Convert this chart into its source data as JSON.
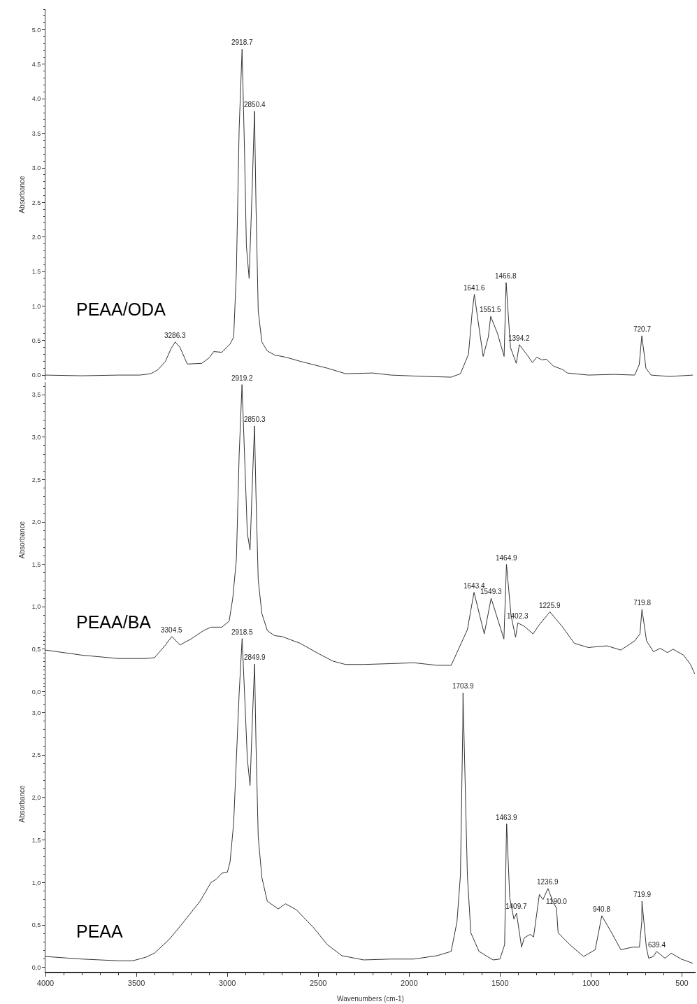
{
  "chart_data": [
    {
      "type": "line",
      "ylabel": "Absorbance",
      "xlim": [
        4000,
        425
      ],
      "ylim": [
        -0.07,
        5.3
      ],
      "tick_labels": "y",
      "yticks": [
        {
          "value": 0,
          "label": "0.0"
        },
        {
          "value": 0.5,
          "label": "0.5"
        },
        {
          "value": 1,
          "label": "1.0"
        },
        {
          "value": 1.5,
          "label": "1.5"
        },
        {
          "value": 2,
          "label": "2.0"
        },
        {
          "value": 2.5,
          "label": "2.5"
        },
        {
          "value": 3,
          "label": "3.0"
        },
        {
          "value": 3.5,
          "label": "3.5"
        },
        {
          "value": 4,
          "label": "4.0"
        },
        {
          "value": 4.5,
          "label": "4.5"
        },
        {
          "value": 5,
          "label": "5.0"
        }
      ],
      "series": [
        {
          "name": "PEAA/ODA",
          "color": "#333333",
          "x": [
            4000,
            3800,
            3600,
            3480,
            3420,
            3380,
            3340,
            3310,
            3286.3,
            3260,
            3220,
            3140,
            3100,
            3075,
            3030,
            2985,
            2965,
            2950,
            2935,
            2918.7,
            2905,
            2895,
            2880,
            2862,
            2850.4,
            2842,
            2830,
            2810,
            2780,
            2740,
            2680,
            2600,
            2450,
            2350,
            2200,
            2100,
            1910,
            1769,
            1718,
            1674,
            1654,
            1641.6,
            1622,
            1593,
            1565,
            1551.5,
            1514,
            1478,
            1466.8,
            1443,
            1411,
            1394.2,
            1348,
            1322,
            1299,
            1271,
            1245,
            1207,
            1156,
            1130,
            1015,
            875,
            760,
            735,
            720.7,
            698,
            670,
            568,
            504,
            440
          ],
          "values": [
            0.0,
            -0.01,
            0.0,
            0.0,
            0.02,
            0.08,
            0.2,
            0.38,
            0.48,
            0.4,
            0.16,
            0.17,
            0.25,
            0.34,
            0.33,
            0.45,
            0.55,
            1.5,
            3.56,
            4.72,
            3.2,
            1.87,
            1.4,
            2.8,
            3.82,
            2.43,
            0.93,
            0.48,
            0.35,
            0.29,
            0.26,
            0.2,
            0.1,
            0.02,
            0.03,
            0.0,
            -0.02,
            -0.03,
            0.02,
            0.3,
            0.9,
            1.17,
            0.8,
            0.27,
            0.55,
            0.85,
            0.6,
            0.27,
            1.34,
            0.4,
            0.17,
            0.44,
            0.28,
            0.18,
            0.26,
            0.22,
            0.23,
            0.13,
            0.08,
            0.03,
            0.0,
            0.01,
            0.0,
            0.15,
            0.57,
            0.1,
            0.0,
            -0.02,
            -0.01,
            0.0
          ]
        }
      ],
      "annotations": [
        {
          "text": "2918.7",
          "x": 2918.7,
          "y": 4.72
        },
        {
          "text": "2850.4",
          "x": 2850.4,
          "y": 3.82
        },
        {
          "text": "3286.3",
          "x": 3286.3,
          "y": 0.48
        },
        {
          "text": "1641.6",
          "x": 1641.6,
          "y": 1.17
        },
        {
          "text": "1551.5",
          "x": 1551.5,
          "y": 0.85
        },
        {
          "text": "1466.8",
          "x": 1466.8,
          "y": 1.34
        },
        {
          "text": "1394.2",
          "x": 1394.2,
          "y": 0.44
        },
        {
          "text": "720.7",
          "x": 720.7,
          "y": 0.57
        }
      ]
    },
    {
      "type": "line",
      "ylabel": "Absorbance",
      "xlim": [
        4000,
        425
      ],
      "ylim": [
        -0.07,
        3.65
      ],
      "tick_labels": "y",
      "yticks": [
        {
          "value": 0,
          "label": "0,0"
        },
        {
          "value": 0.5,
          "label": "0,5"
        },
        {
          "value": 1,
          "label": "1,0"
        },
        {
          "value": 1.5,
          "label": "1,5"
        },
        {
          "value": 2,
          "label": "2,0"
        },
        {
          "value": 2.5,
          "label": "2,5"
        },
        {
          "value": 3,
          "label": "3,0"
        },
        {
          "value": 3.5,
          "label": "3,5"
        }
      ],
      "series": [
        {
          "name": "PEAA/BA",
          "color": "#333333",
          "x": [
            4000,
            3800,
            3600,
            3450,
            3400,
            3340,
            3304.5,
            3260,
            3200,
            3130,
            3090,
            3030,
            2990,
            2970,
            2950,
            2935,
            2919.2,
            2905,
            2890,
            2875,
            2862,
            2850.3,
            2842,
            2830,
            2810,
            2780,
            2740,
            2700,
            2600,
            2500,
            2420,
            2350,
            2250,
            2102,
            1974,
            1846,
            1769,
            1731,
            1680,
            1643.4,
            1587,
            1549.3,
            1479,
            1464.9,
            1440,
            1415,
            1402.3,
            1367,
            1319,
            1284,
            1225.9,
            1156,
            1092,
            1015,
            913,
            836,
            759,
            731,
            719.8,
            695,
            657,
            619,
            580,
            549,
            491,
            453,
            430
          ],
          "values": [
            0.49,
            0.43,
            0.39,
            0.39,
            0.4,
            0.55,
            0.65,
            0.55,
            0.62,
            0.72,
            0.76,
            0.76,
            0.83,
            1.1,
            1.56,
            2.78,
            3.62,
            2.78,
            1.87,
            1.67,
            2.48,
            3.13,
            2.29,
            1.32,
            0.92,
            0.72,
            0.66,
            0.65,
            0.57,
            0.45,
            0.36,
            0.32,
            0.32,
            0.33,
            0.34,
            0.31,
            0.31,
            0.49,
            0.73,
            1.17,
            0.68,
            1.1,
            0.62,
            1.5,
            0.9,
            0.64,
            0.81,
            0.77,
            0.68,
            0.79,
            0.94,
            0.76,
            0.57,
            0.52,
            0.54,
            0.49,
            0.6,
            0.68,
            0.97,
            0.6,
            0.47,
            0.51,
            0.46,
            0.5,
            0.43,
            0.32,
            0.21
          ]
        }
      ],
      "annotations": [
        {
          "text": "2919.2",
          "x": 2919.2,
          "y": 3.62
        },
        {
          "text": "2850.3",
          "x": 2850.3,
          "y": 3.13
        },
        {
          "text": "3304.5",
          "x": 3304.5,
          "y": 0.65
        },
        {
          "text": "1643.4",
          "x": 1643.4,
          "y": 1.17
        },
        {
          "text": "1549.3",
          "x": 1549.3,
          "y": 1.1
        },
        {
          "text": "1464.9",
          "x": 1464.9,
          "y": 1.5
        },
        {
          "text": "1402.3",
          "x": 1402.3,
          "y": 0.81
        },
        {
          "text": "1225.9",
          "x": 1225.9,
          "y": 0.94
        },
        {
          "text": "719.8",
          "x": 719.8,
          "y": 0.97
        }
      ]
    },
    {
      "type": "line",
      "ylabel": "Absorbance",
      "xlabel": "Wavenumbers (cm-1)",
      "xlim": [
        4000,
        425
      ],
      "ylim": [
        -0.05,
        3.9
      ],
      "xticks": [
        4000,
        3500,
        3000,
        2500,
        2000,
        1500,
        1000,
        500
      ],
      "yticks": [
        {
          "value": 0,
          "label": "0,0"
        },
        {
          "value": 0.5,
          "label": "0,5"
        },
        {
          "value": 1,
          "label": "1,0"
        },
        {
          "value": 1.5,
          "label": "1,5"
        },
        {
          "value": 2,
          "label": "2,0"
        },
        {
          "value": 2.5,
          "label": "2,5"
        },
        {
          "value": 3,
          "label": "3,0"
        }
      ],
      "series": [
        {
          "name": "PEAA",
          "color": "#333333",
          "x": [
            4000,
            3800,
            3600,
            3520,
            3450,
            3400,
            3320,
            3250,
            3150,
            3090,
            3060,
            3030,
            3000,
            2985,
            2965,
            2950,
            2935,
            2918.5,
            2905,
            2890,
            2875,
            2862,
            2849.9,
            2842,
            2830,
            2810,
            2780,
            2720,
            2680,
            2620,
            2580,
            2530,
            2450,
            2370,
            2250,
            2102,
            1974,
            1846,
            1769,
            1737,
            1718,
            1705,
            1703.9,
            1680,
            1661,
            1616,
            1539,
            1501,
            1475,
            1466,
            1463.9,
            1447,
            1424,
            1409.7,
            1382,
            1367,
            1335,
            1316,
            1284,
            1264,
            1236.9,
            1207,
            1190.0,
            1181,
            1117,
            1041,
            977,
            940.8,
            887,
            836,
            772,
            734,
            721,
            719.9,
            696,
            683,
            657,
            639.4,
            593,
            559,
            504,
            440
          ],
          "values": [
            0.13,
            0.1,
            0.08,
            0.08,
            0.12,
            0.17,
            0.33,
            0.51,
            0.78,
            1.0,
            1.04,
            1.11,
            1.12,
            1.24,
            1.7,
            2.46,
            3.22,
            3.87,
            3.22,
            2.46,
            2.14,
            2.92,
            3.57,
            2.61,
            1.54,
            1.06,
            0.78,
            0.69,
            0.75,
            0.68,
            0.59,
            0.48,
            0.27,
            0.14,
            0.09,
            0.1,
            0.1,
            0.14,
            0.19,
            0.54,
            1.09,
            2.87,
            3.23,
            1.09,
            0.41,
            0.19,
            0.09,
            0.1,
            0.27,
            1.5,
            1.69,
            0.82,
            0.57,
            0.64,
            0.24,
            0.35,
            0.39,
            0.36,
            0.86,
            0.8,
            0.93,
            0.76,
            0.7,
            0.41,
            0.27,
            0.13,
            0.21,
            0.61,
            0.41,
            0.21,
            0.24,
            0.24,
            0.54,
            0.78,
            0.24,
            0.11,
            0.13,
            0.19,
            0.11,
            0.17,
            0.1,
            0.05
          ]
        }
      ],
      "annotations": [
        {
          "text": "2918.5",
          "x": 2918.5,
          "y": 3.87
        },
        {
          "text": "2849.9",
          "x": 2849.9,
          "y": 3.57
        },
        {
          "text": "1703.9",
          "x": 1703.9,
          "y": 3.23
        },
        {
          "text": "1463.9",
          "x": 1463.9,
          "y": 1.69
        },
        {
          "text": "1409.7",
          "x": 1409.7,
          "y": 0.64
        },
        {
          "text": "1190.0",
          "x": 1190.0,
          "y": 0.7
        },
        {
          "text": "1236.9",
          "x": 1236.9,
          "y": 0.93
        },
        {
          "text": "940.8",
          "x": 940.8,
          "y": 0.61
        },
        {
          "text": "719.9",
          "x": 719.9,
          "y": 0.78
        },
        {
          "text": "639.4",
          "x": 639.4,
          "y": 0.19
        }
      ]
    }
  ]
}
